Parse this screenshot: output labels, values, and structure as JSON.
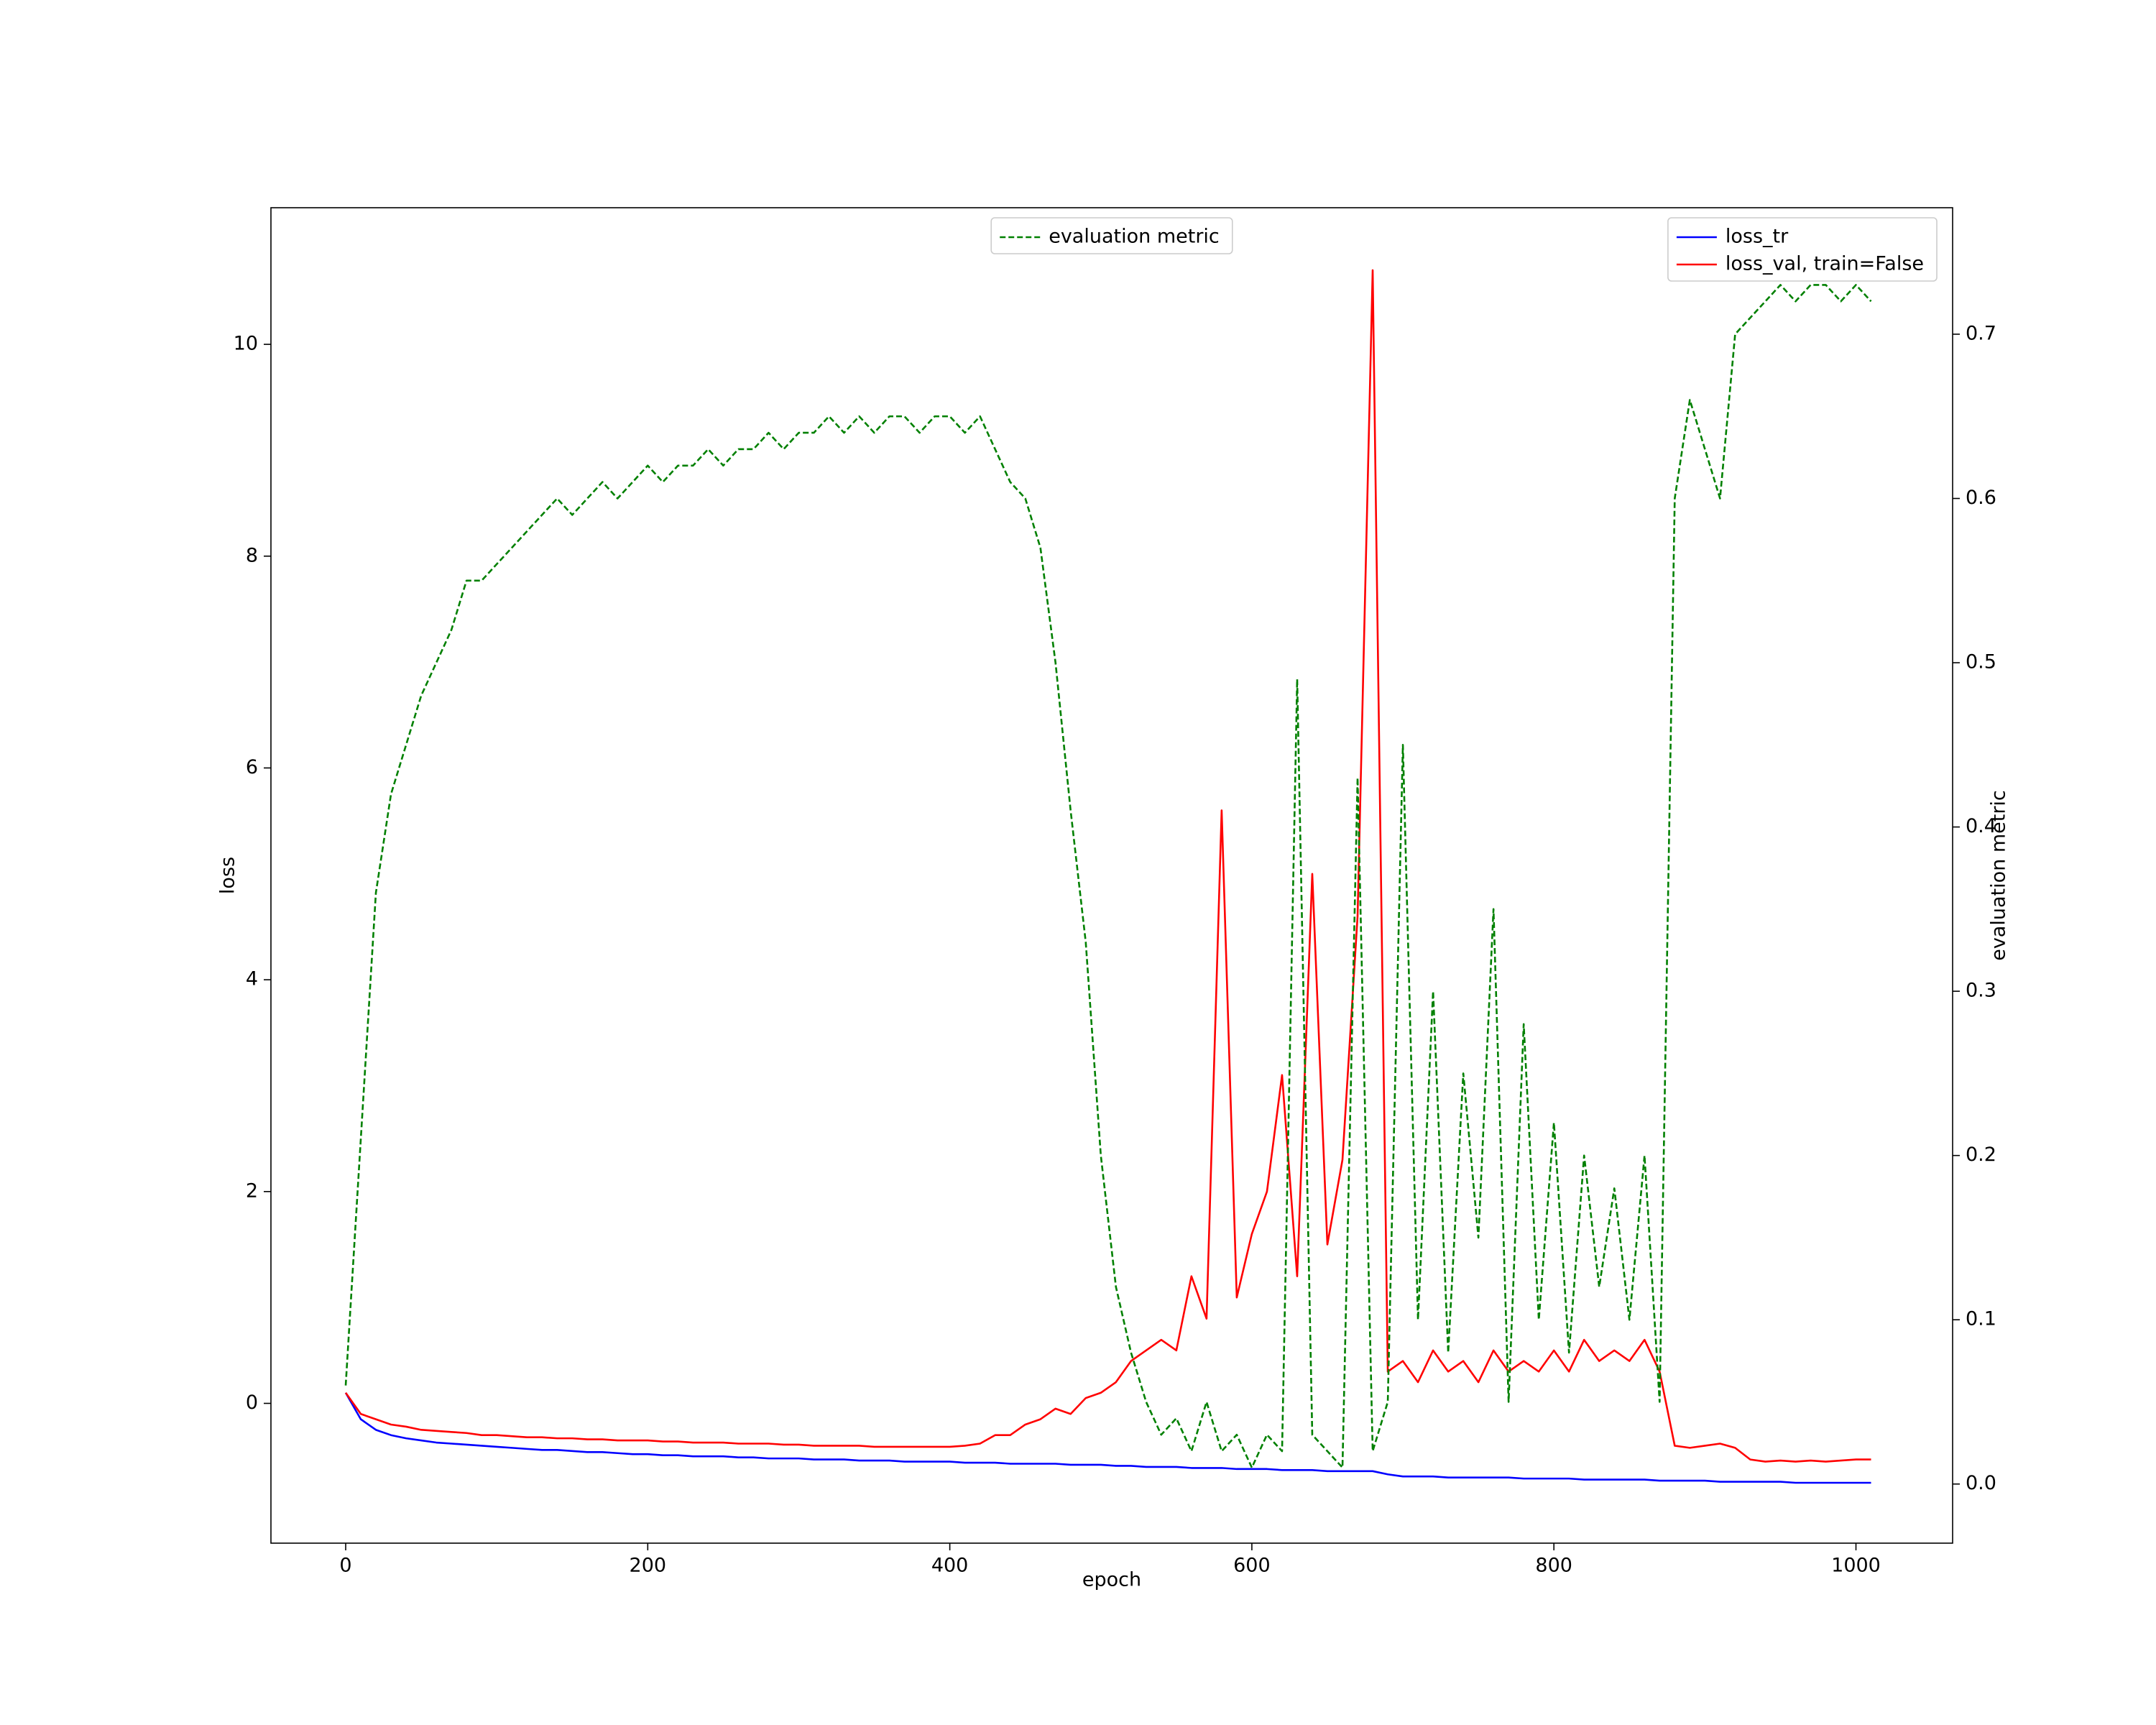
{
  "chart_data": {
    "type": "line",
    "xlabel": "epoch",
    "ylabel": "loss",
    "y2label": "evaluation metric",
    "xlim": [
      -49.5,
      1064
    ],
    "ylim": [
      -1.32,
      11.29
    ],
    "y2lim": [
      -0.036,
      0.777
    ],
    "xticks": [
      0,
      200,
      400,
      600,
      800,
      1000
    ],
    "yticks": [
      0,
      2,
      4,
      6,
      8,
      10
    ],
    "y2ticks": [
      {
        "value": 0,
        "label": "0.0"
      },
      0.1,
      0.2,
      0.3,
      0.4,
      0.5,
      0.6,
      0.7
    ],
    "legend_loc": "upper right",
    "legend2_loc": "upper center",
    "x": [
      0,
      10,
      20,
      30,
      40,
      50,
      60,
      70,
      80,
      90,
      100,
      110,
      120,
      130,
      140,
      150,
      160,
      170,
      180,
      190,
      200,
      210,
      220,
      230,
      240,
      250,
      260,
      270,
      280,
      290,
      300,
      310,
      320,
      330,
      340,
      350,
      360,
      370,
      380,
      390,
      400,
      410,
      420,
      430,
      440,
      450,
      460,
      470,
      480,
      490,
      500,
      510,
      520,
      530,
      540,
      550,
      560,
      570,
      580,
      590,
      600,
      610,
      620,
      630,
      640,
      650,
      660,
      670,
      680,
      690,
      700,
      710,
      720,
      730,
      740,
      750,
      760,
      770,
      780,
      790,
      800,
      810,
      820,
      830,
      840,
      850,
      860,
      870,
      880,
      890,
      900,
      910,
      920,
      930,
      940,
      950,
      960,
      970,
      980,
      990,
      1000,
      1010
    ],
    "series": [
      {
        "name": "loss_tr",
        "color": "#0000ff",
        "dashed": false,
        "axis": "y",
        "values": [
          0.1,
          -0.15,
          -0.25,
          -0.3,
          -0.33,
          -0.35,
          -0.37,
          -0.38,
          -0.39,
          -0.4,
          -0.41,
          -0.42,
          -0.43,
          -0.44,
          -0.44,
          -0.45,
          -0.46,
          -0.46,
          -0.47,
          -0.48,
          -0.48,
          -0.49,
          -0.49,
          -0.5,
          -0.5,
          -0.5,
          -0.51,
          -0.51,
          -0.52,
          -0.52,
          -0.52,
          -0.53,
          -0.53,
          -0.53,
          -0.54,
          -0.54,
          -0.54,
          -0.55,
          -0.55,
          -0.55,
          -0.55,
          -0.56,
          -0.56,
          -0.56,
          -0.57,
          -0.57,
          -0.57,
          -0.57,
          -0.58,
          -0.58,
          -0.58,
          -0.59,
          -0.59,
          -0.6,
          -0.6,
          -0.6,
          -0.61,
          -0.61,
          -0.61,
          -0.62,
          -0.62,
          -0.62,
          -0.63,
          -0.63,
          -0.63,
          -0.64,
          -0.64,
          -0.64,
          -0.64,
          -0.67,
          -0.69,
          -0.69,
          -0.69,
          -0.7,
          -0.7,
          -0.7,
          -0.7,
          -0.7,
          -0.71,
          -0.71,
          -0.71,
          -0.71,
          -0.72,
          -0.72,
          -0.72,
          -0.72,
          -0.72,
          -0.73,
          -0.73,
          -0.73,
          -0.73,
          -0.74,
          -0.74,
          -0.74,
          -0.74,
          -0.74,
          -0.75,
          -0.75,
          -0.75,
          -0.75,
          -0.75,
          -0.75
        ]
      },
      {
        "name": "loss_val, train=False",
        "color": "#ff0000",
        "dashed": false,
        "axis": "y",
        "values": [
          0.1,
          -0.1,
          -0.15,
          -0.2,
          -0.22,
          -0.25,
          -0.26,
          -0.27,
          -0.28,
          -0.3,
          -0.3,
          -0.31,
          -0.32,
          -0.32,
          -0.33,
          -0.33,
          -0.34,
          -0.34,
          -0.35,
          -0.35,
          -0.35,
          -0.36,
          -0.36,
          -0.37,
          -0.37,
          -0.37,
          -0.38,
          -0.38,
          -0.38,
          -0.39,
          -0.39,
          -0.4,
          -0.4,
          -0.4,
          -0.4,
          -0.41,
          -0.41,
          -0.41,
          -0.41,
          -0.41,
          -0.41,
          -0.4,
          -0.38,
          -0.3,
          -0.3,
          -0.2,
          -0.15,
          -0.05,
          -0.1,
          0.05,
          0.1,
          0.2,
          0.4,
          0.5,
          0.6,
          0.5,
          1.2,
          0.8,
          5.6,
          1.0,
          1.6,
          2.0,
          3.1,
          1.2,
          5.0,
          1.5,
          2.3,
          4.6,
          10.7,
          0.3,
          0.4,
          0.2,
          0.5,
          0.3,
          0.4,
          0.2,
          0.5,
          0.3,
          0.4,
          0.3,
          0.5,
          0.3,
          0.6,
          0.4,
          0.5,
          0.4,
          0.6,
          0.3,
          -0.4,
          -0.42,
          -0.4,
          -0.38,
          -0.42,
          -0.53,
          -0.55,
          -0.54,
          -0.55,
          -0.54,
          -0.55,
          -0.54,
          -0.53,
          -0.53
        ]
      },
      {
        "name": "evaluation metric",
        "color": "#008000",
        "dashed": true,
        "axis": "y2",
        "values": [
          0.06,
          0.21,
          0.36,
          0.42,
          0.45,
          0.48,
          0.5,
          0.52,
          0.55,
          0.55,
          0.56,
          0.57,
          0.58,
          0.59,
          0.6,
          0.59,
          0.6,
          0.61,
          0.6,
          0.61,
          0.62,
          0.61,
          0.62,
          0.62,
          0.63,
          0.62,
          0.63,
          0.63,
          0.64,
          0.63,
          0.64,
          0.64,
          0.65,
          0.64,
          0.65,
          0.64,
          0.65,
          0.65,
          0.64,
          0.65,
          0.65,
          0.64,
          0.65,
          0.63,
          0.61,
          0.6,
          0.57,
          0.5,
          0.41,
          0.33,
          0.2,
          0.12,
          0.08,
          0.05,
          0.03,
          0.04,
          0.02,
          0.05,
          0.02,
          0.03,
          0.01,
          0.03,
          0.02,
          0.49,
          0.03,
          0.02,
          0.01,
          0.43,
          0.02,
          0.05,
          0.45,
          0.1,
          0.3,
          0.08,
          0.25,
          0.15,
          0.35,
          0.05,
          0.28,
          0.1,
          0.22,
          0.08,
          0.2,
          0.12,
          0.18,
          0.1,
          0.2,
          0.05,
          0.6,
          0.66,
          0.63,
          0.6,
          0.7,
          0.71,
          0.72,
          0.73,
          0.72,
          0.73,
          0.73,
          0.72,
          0.73,
          0.72
        ]
      }
    ]
  }
}
